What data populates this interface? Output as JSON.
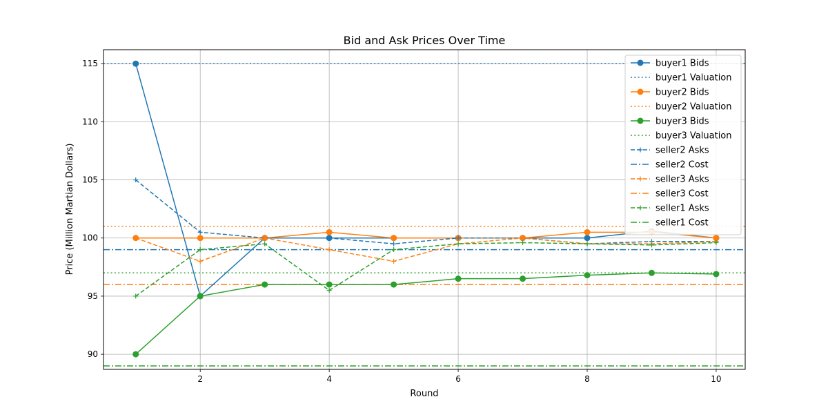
{
  "chart_data": {
    "type": "line",
    "title": "Bid and Ask Prices Over Time",
    "xlabel": "Round",
    "ylabel": "Price (Million Martian Dollars)",
    "xlim": [
      0.5,
      10.45
    ],
    "ylim": [
      88.7,
      116.2
    ],
    "xticks": [
      2,
      4,
      6,
      8,
      10
    ],
    "yticks": [
      90,
      95,
      100,
      105,
      110,
      115
    ],
    "grid": true,
    "legend_position": "top-right",
    "x": [
      1,
      2,
      3,
      4,
      5,
      6,
      7,
      8,
      9,
      10
    ],
    "series": [
      {
        "name": "buyer1 Bids",
        "kind": "line",
        "marker": "circle",
        "dash": "solid",
        "color": "#1f77b4",
        "values": [
          115,
          95,
          100,
          100,
          100,
          100,
          100,
          100,
          100.6,
          100
        ]
      },
      {
        "name": "buyer1 Valuation",
        "kind": "hline",
        "dash": "dotted",
        "color": "#1f77b4",
        "value": 115
      },
      {
        "name": "buyer2 Bids",
        "kind": "line",
        "marker": "circle",
        "dash": "solid",
        "color": "#ff7f0e",
        "values": [
          100,
          100,
          100,
          100.5,
          100,
          100,
          100,
          100.5,
          100.5,
          100
        ]
      },
      {
        "name": "buyer2 Valuation",
        "kind": "hline",
        "dash": "dotted",
        "color": "#ff7f0e",
        "value": 101
      },
      {
        "name": "buyer3 Bids",
        "kind": "line",
        "marker": "circle",
        "dash": "solid",
        "color": "#2ca02c",
        "values": [
          90,
          95,
          96,
          96,
          96,
          96.5,
          96.5,
          96.8,
          97,
          96.9
        ]
      },
      {
        "name": "buyer3 Valuation",
        "kind": "hline",
        "dash": "dotted",
        "color": "#2ca02c",
        "value": 97
      },
      {
        "name": "seller2 Asks",
        "kind": "line",
        "marker": "plus",
        "dash": "dashed",
        "color": "#1f77b4",
        "values": [
          105,
          100.5,
          100,
          100,
          99.5,
          100,
          100,
          99.5,
          99.7,
          99.7
        ]
      },
      {
        "name": "seller2 Cost",
        "kind": "hline",
        "dash": "dashdot",
        "color": "#1f77b4",
        "value": 99
      },
      {
        "name": "seller3 Asks",
        "kind": "line",
        "marker": "plus",
        "dash": "dashed",
        "color": "#ff7f0e",
        "values": [
          100,
          98,
          100,
          99,
          98,
          99.5,
          100,
          99.5,
          99.5,
          99.7
        ]
      },
      {
        "name": "seller3 Cost",
        "kind": "hline",
        "dash": "dashdot",
        "color": "#ff7f0e",
        "value": 96
      },
      {
        "name": "seller1 Asks",
        "kind": "line",
        "marker": "plus",
        "dash": "dashed",
        "color": "#2ca02c",
        "values": [
          95,
          99,
          99.5,
          95.5,
          99,
          99.5,
          99.6,
          99.5,
          99.4,
          99.6
        ]
      },
      {
        "name": "seller1 Cost",
        "kind": "hline",
        "dash": "dashdot",
        "color": "#2ca02c",
        "value": 89
      }
    ]
  }
}
